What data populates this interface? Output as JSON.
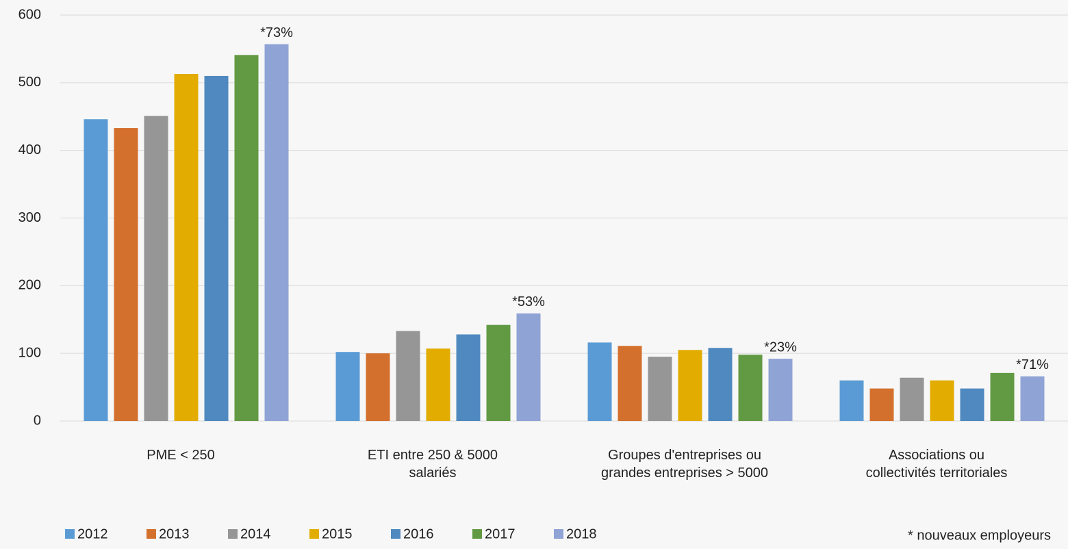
{
  "chart_data": {
    "type": "bar",
    "categories": [
      "PME < 250",
      "ETI entre 250 & 5000\nsalariés",
      "Groupes d'entreprises ou\ngrandes entreprises > 5000",
      "Associations ou\ncollectivités territoriales"
    ],
    "series": [
      {
        "name": "2012",
        "color": "#5b9bd5",
        "values": [
          446,
          102,
          116,
          60
        ]
      },
      {
        "name": "2013",
        "color": "#d4702e",
        "values": [
          433,
          100,
          111,
          48
        ]
      },
      {
        "name": "2014",
        "color": "#969696",
        "values": [
          451,
          133,
          95,
          64
        ]
      },
      {
        "name": "2015",
        "color": "#e2ac00",
        "values": [
          513,
          107,
          105,
          60
        ]
      },
      {
        "name": "2016",
        "color": "#4f89c0",
        "values": [
          510,
          128,
          108,
          48
        ]
      },
      {
        "name": "2017",
        "color": "#629a43",
        "values": [
          541,
          142,
          98,
          71
        ]
      },
      {
        "name": "2018",
        "color": "#8fa3d5",
        "values": [
          557,
          159,
          92,
          66
        ]
      }
    ],
    "annotations": [
      "*73%",
      "*53%",
      "*23%",
      "*71%"
    ],
    "note": "* nouveaux employeurs",
    "ylim": [
      0,
      600
    ],
    "yticks": [
      0,
      100,
      200,
      300,
      400,
      500,
      600
    ],
    "grid": true,
    "legend": "bottom"
  }
}
